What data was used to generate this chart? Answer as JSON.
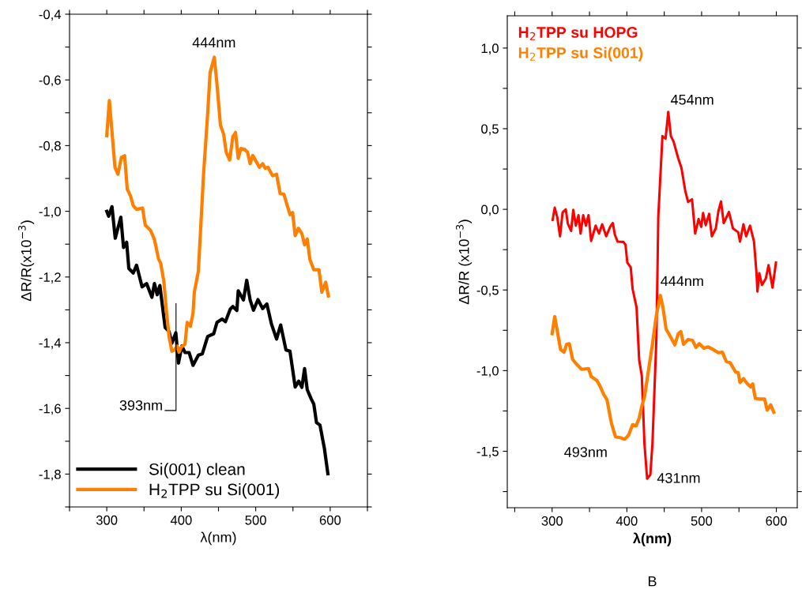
{
  "chart_data": [
    {
      "type": "line",
      "xlabel": "λ(nm)",
      "ylabel": "ΔR/R(x10$^{−3}$)",
      "xlim": [
        250,
        650
      ],
      "ylim": [
        -1.9,
        -0.4
      ],
      "xticks": [
        {
          "value": 250,
          "label": null
        },
        300,
        {
          "value": 350,
          "label": null
        },
        400,
        {
          "value": 450,
          "label": null
        },
        500,
        {
          "value": 550,
          "label": null
        },
        600,
        {
          "value": 650,
          "label": null
        }
      ],
      "yticks": [
        {
          "value": -1.9,
          "label": null
        },
        {
          "value": -1.8,
          "label": "-1,8"
        },
        {
          "value": -1.7,
          "label": null
        },
        {
          "value": -1.6,
          "label": "-1,6"
        },
        {
          "value": -1.5,
          "label": null
        },
        {
          "value": -1.4,
          "label": "-1,4"
        },
        {
          "value": -1.3,
          "label": null
        },
        {
          "value": -1.2,
          "label": "-1,2"
        },
        {
          "value": -1.1,
          "label": null
        },
        {
          "value": -1.0,
          "label": "-1,0"
        },
        {
          "value": -0.9,
          "label": null
        },
        {
          "value": -0.8,
          "label": "-0,8"
        },
        {
          "value": -0.7,
          "label": null
        },
        {
          "value": -0.6,
          "label": "-0,6"
        },
        {
          "value": -0.5,
          "label": null
        },
        {
          "value": -0.4,
          "label": "-0,4"
        }
      ],
      "legend": "bottom left",
      "series": [
        {
          "name": "Si(001) clean",
          "color": "#000000",
          "x": [
            300,
            302.5,
            307,
            311.4,
            318.9,
            322.5,
            326.7,
            329.6,
            335.6,
            340,
            347.4,
            353.5,
            360.6,
            364,
            367.7,
            371.3,
            378.4,
            383.7,
            387.4,
            392.7,
            396.3,
            400.9,
            405,
            410.5,
            415.8,
            423,
            428.3,
            435.5,
            443.6,
            448,
            455,
            459.4,
            465.8,
            469.3,
            474.7,
            476.5,
            483.6,
            487.9,
            492.5,
            497,
            503,
            509.3,
            515,
            521,
            528,
            533.5,
            540.6,
            546,
            553,
            557.8,
            562,
            565.6,
            569.2,
            574.5,
            578,
            581.6,
            586.3,
            592.3,
            596.9
          ],
          "values": [
            -1.0,
            -1.015,
            -0.986,
            -1.082,
            -1.018,
            -1.11,
            -1.094,
            -1.174,
            -1.188,
            -1.164,
            -1.23,
            -1.22,
            -1.262,
            -1.22,
            -1.254,
            -1.226,
            -1.354,
            -1.366,
            -1.402,
            -1.37,
            -1.462,
            -1.41,
            -1.43,
            -1.43,
            -1.469,
            -1.438,
            -1.434,
            -1.381,
            -1.373,
            -1.338,
            -1.328,
            -1.336,
            -1.298,
            -1.29,
            -1.302,
            -1.242,
            -1.27,
            -1.21,
            -1.27,
            -1.301,
            -1.269,
            -1.296,
            -1.282,
            -1.342,
            -1.389,
            -1.346,
            -1.422,
            -1.426,
            -1.535,
            -1.517,
            -1.536,
            -1.479,
            -1.543,
            -1.571,
            -1.587,
            -1.643,
            -1.651,
            -1.723,
            -1.799
          ]
        },
        {
          "name": "H$_{2}$TPP su Si(001)",
          "color": "#ff8000",
          "x": [
            300,
            303.5,
            311,
            315,
            319.6,
            324,
            327.5,
            332,
            335.6,
            340,
            348,
            351.7,
            358.8,
            364,
            369.5,
            372.4,
            376.7,
            380,
            383.7,
            387.4,
            391,
            394.5,
            397,
            399.8,
            405,
            408,
            412.3,
            415.8,
            417.6,
            423,
            430,
            435.3,
            438.8,
            444.4,
            448,
            452.6,
            456.9,
            460.4,
            465,
            469.3,
            472.9,
            476.5,
            480,
            485.4,
            489,
            492.5,
            496,
            505,
            509.3,
            512.8,
            516.4,
            522.8,
            528,
            532.8,
            537.8,
            546,
            549.5,
            553,
            557.4,
            562,
            565.6,
            569.2,
            572.7,
            578,
            585,
            588.8,
            594,
            597.6
          ],
          "values": [
            -0.77,
            -0.663,
            -0.866,
            -0.887,
            -0.836,
            -0.831,
            -0.932,
            -0.954,
            -0.983,
            -0.994,
            -0.99,
            -1.042,
            -1.058,
            -1.086,
            -1.145,
            -1.158,
            -1.214,
            -1.302,
            -1.382,
            -1.426,
            -1.422,
            -1.41,
            -1.429,
            -1.414,
            -1.405,
            -1.338,
            -1.35,
            -1.31,
            -1.246,
            -1.182,
            -0.886,
            -0.709,
            -0.577,
            -0.531,
            -0.613,
            -0.737,
            -0.765,
            -0.82,
            -0.844,
            -0.773,
            -0.76,
            -0.839,
            -0.809,
            -0.812,
            -0.82,
            -0.855,
            -0.83,
            -0.866,
            -0.855,
            -0.869,
            -0.866,
            -0.892,
            -0.887,
            -0.946,
            -0.948,
            -1.01,
            -1.004,
            -1.074,
            -1.052,
            -1.068,
            -1.102,
            -1.084,
            -1.146,
            -1.178,
            -1.178,
            -1.246,
            -1.216,
            -1.258
          ]
        }
      ],
      "annotations": [
        {
          "text": "444nm",
          "x": 444,
          "y": -0.53
        },
        "393nm"
      ]
    },
    {
      "type": "line",
      "xlabel": "λ(nm)",
      "ylabel": "ΔR/R (x10$^{−3}$)",
      "xlim": [
        240,
        628
      ],
      "ylim": [
        -1.85,
        1.2
      ],
      "xticks": [
        {
          "value": 250,
          "label": null
        },
        300,
        {
          "value": 350,
          "label": null
        },
        400,
        {
          "value": 450,
          "label": null
        },
        500,
        {
          "value": 550,
          "label": null
        },
        600
      ],
      "yticks": [
        {
          "value": -1.75,
          "label": null
        },
        {
          "value": -1.5,
          "label": "-1,5"
        },
        {
          "value": -1.25,
          "label": null
        },
        {
          "value": -1.0,
          "label": "-1,0"
        },
        {
          "value": -0.75,
          "label": null
        },
        {
          "value": -0.5,
          "label": "-0,5"
        },
        {
          "value": -0.25,
          "label": null
        },
        {
          "value": 0.0,
          "label": "0,0"
        },
        {
          "value": 0.25,
          "label": null
        },
        {
          "value": 0.5,
          "label": "0,5"
        },
        {
          "value": 0.75,
          "label": null
        },
        {
          "value": 1.0,
          "label": "1,0"
        }
      ],
      "legend": "top left",
      "series": [
        {
          "name": "H$_{2}$TPP su HOPG",
          "color": "#ff0000",
          "x": [
            300.7,
            303.5,
            307,
            310.6,
            314,
            318.3,
            321,
            325.4,
            328.3,
            331.8,
            335.3,
            338.1,
            341.6,
            345.2,
            348.7,
            352.2,
            358.3,
            362.8,
            367,
            372.4,
            377.6,
            381.2,
            384,
            387.6,
            395.3,
            398.2,
            400.6,
            405.2,
            407.7,
            413,
            416.5,
            420,
            423.6,
            427.1,
            431.4,
            434.2,
            439.5,
            441.2,
            442,
            447.6,
            451.8,
            455.4,
            458.9,
            462.4,
            468.8,
            473,
            478.3,
            481.9,
            487.2,
            491.4,
            496,
            499.5,
            502,
            505.5,
            510.1,
            513.7,
            519,
            522.5,
            526,
            529.6,
            536.6,
            541.9,
            549,
            551.4,
            556,
            559.6,
            564.8,
            570.1,
            573.6,
            574.7,
            577.2,
            580.8,
            586,
            589.6,
            594.9,
            599.5
          ],
          "values": [
            -0.065,
            0.01,
            -0.052,
            -0.167,
            -0.02,
            0.0,
            -0.088,
            -0.134,
            -0.003,
            -0.101,
            -0.036,
            -0.15,
            -0.036,
            -0.101,
            -0.036,
            -0.196,
            -0.101,
            -0.15,
            -0.093,
            -0.167,
            -0.109,
            -0.085,
            -0.158,
            -0.2,
            -0.202,
            -0.219,
            -0.33,
            -0.36,
            -0.494,
            -0.608,
            -0.935,
            -1.033,
            -1.457,
            -1.67,
            -1.646,
            -1.457,
            -0.804,
            -0.314,
            -0.052,
            0.454,
            0.438,
            0.604,
            0.454,
            0.422,
            0.315,
            0.258,
            0.111,
            0.046,
            0.062,
            -0.15,
            -0.06,
            -0.109,
            -0.023,
            -0.098,
            -0.028,
            -0.167,
            -0.118,
            -0.011,
            0.049,
            -0.085,
            -0.016,
            -0.118,
            -0.142,
            -0.2,
            -0.093,
            -0.167,
            -0.101,
            -0.2,
            -0.403,
            -0.51,
            -0.396,
            -0.469,
            -0.428,
            -0.346,
            -0.485,
            -0.33
          ]
        },
        {
          "name": "H$_{2}$TPP su Si(001)",
          "color": "#ff8000",
          "x": [
            300,
            303.5,
            311.3,
            315.9,
            319.4,
            323,
            327.5,
            332.5,
            339.5,
            348.7,
            352.2,
            360,
            364.3,
            368.9,
            373.4,
            379.4,
            384.7,
            391.8,
            397.1,
            402.4,
            407.7,
            412.3,
            416.5,
            420,
            423.6,
            428.9,
            434.2,
            439.5,
            444.8,
            448.3,
            452.5,
            457.1,
            464.2,
            468.8,
            472.3,
            475.8,
            481.9,
            487.8,
            492.5,
            497,
            503,
            509,
            515.4,
            522.5,
            527.8,
            533,
            538.3,
            545.4,
            549,
            551.4,
            556,
            561.3,
            565.6,
            568.4,
            571.9,
            577.2,
            584.3,
            587.8,
            592.4,
            596.6
          ],
          "values": [
            -0.771,
            -0.665,
            -0.869,
            -0.886,
            -0.837,
            -0.833,
            -0.931,
            -0.959,
            -0.992,
            -0.987,
            -1.036,
            -1.062,
            -1.098,
            -1.147,
            -1.18,
            -1.327,
            -1.409,
            -1.417,
            -1.425,
            -1.4,
            -1.335,
            -1.343,
            -1.294,
            -1.221,
            -1.163,
            -1.0,
            -0.837,
            -0.657,
            -0.534,
            -0.608,
            -0.742,
            -0.779,
            -0.84,
            -0.771,
            -0.758,
            -0.837,
            -0.807,
            -0.812,
            -0.856,
            -0.833,
            -0.861,
            -0.853,
            -0.869,
            -0.889,
            -0.886,
            -0.943,
            -0.951,
            -1.008,
            -1.013,
            -1.074,
            -1.049,
            -1.082,
            -1.101,
            -1.082,
            -1.172,
            -1.176,
            -1.176,
            -1.245,
            -1.212,
            -1.258
          ]
        }
      ],
      "annotations": [
        {
          "text": "454nm",
          "x": 455.4,
          "y": 0.604
        },
        {
          "text": "444nm",
          "x": 444.8,
          "y": -0.534
        },
        {
          "text": "493nm",
          "x": 391.8,
          "y": -1.417
        },
        {
          "text": "431nm",
          "x": 431.4,
          "y": -1.646
        },
        "B"
      ]
    }
  ]
}
